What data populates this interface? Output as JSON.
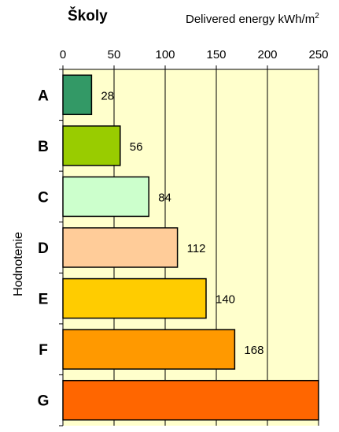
{
  "chart_data": {
    "type": "bar",
    "orientation": "horizontal",
    "title": "Školy",
    "unit_label": "Delivered  energy kWh/m",
    "unit_superscript": "2",
    "ylabel": "Hodnotenie",
    "categories": [
      "A",
      "B",
      "C",
      "D",
      "E",
      "F",
      "G"
    ],
    "values": [
      28,
      56,
      84,
      112,
      140,
      168,
      250
    ],
    "value_labels": [
      "28",
      "56",
      "84",
      "112",
      "140",
      "168",
      ""
    ],
    "colors": [
      "#339966",
      "#99cc00",
      "#ccffcc",
      "#ffcc99",
      "#ffcc00",
      "#ff9900",
      "#ff6600"
    ],
    "xlim": [
      0,
      250
    ],
    "xticks": [
      0,
      50,
      100,
      150,
      200,
      250
    ],
    "x_axis_position": "top",
    "plot_background": "#ffffcc",
    "grid": true,
    "legend": "none"
  }
}
